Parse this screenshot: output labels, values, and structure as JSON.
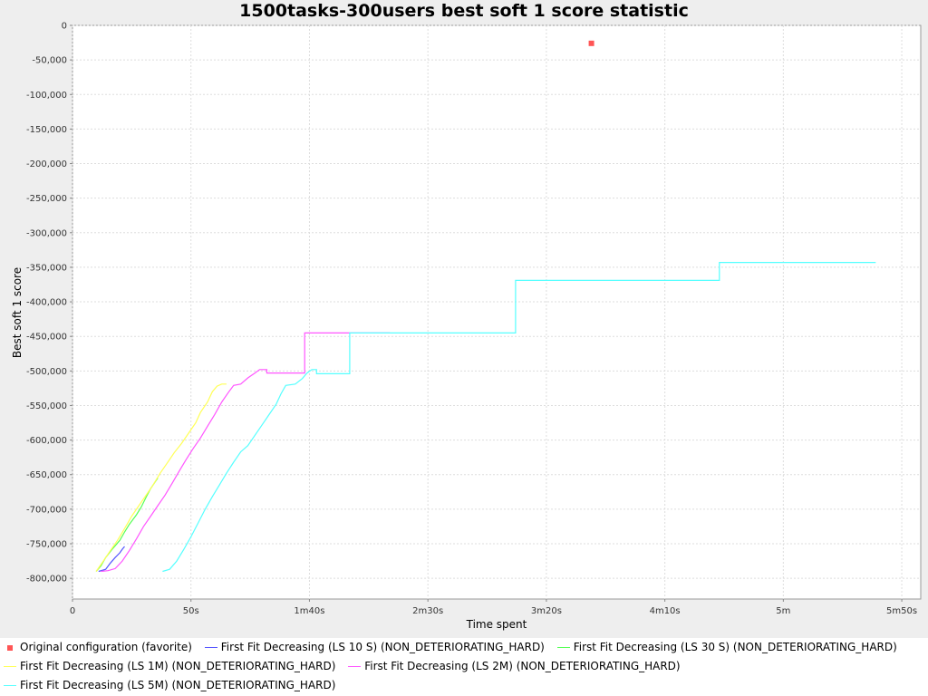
{
  "chart_data": {
    "type": "line",
    "title": "1500tasks-300users best soft 1 score statistic",
    "xlabel": "Time spent",
    "ylabel": "Best soft 1 score",
    "xlim": [
      0,
      358
    ],
    "ylim": [
      -830000,
      0
    ],
    "grid": true,
    "legend_position": "bottom",
    "x_ticks": [
      {
        "value": 0,
        "label": "0"
      },
      {
        "value": 50,
        "label": "50s"
      },
      {
        "value": 100,
        "label": "1m40s"
      },
      {
        "value": 150,
        "label": "2m30s"
      },
      {
        "value": 200,
        "label": "3m20s"
      },
      {
        "value": 250,
        "label": "4m10s"
      },
      {
        "value": 300,
        "label": "5m"
      },
      {
        "value": 350,
        "label": "5m50s"
      }
    ],
    "y_ticks": [
      {
        "value": 0,
        "label": "0"
      },
      {
        "value": -50000,
        "label": "-50,000"
      },
      {
        "value": -100000,
        "label": "-100,000"
      },
      {
        "value": -150000,
        "label": "-150,000"
      },
      {
        "value": -200000,
        "label": "-200,000"
      },
      {
        "value": -250000,
        "label": "-250,000"
      },
      {
        "value": -300000,
        "label": "-300,000"
      },
      {
        "value": -350000,
        "label": "-350,000"
      },
      {
        "value": -400000,
        "label": "-400,000"
      },
      {
        "value": -450000,
        "label": "-450,000"
      },
      {
        "value": -500000,
        "label": "-500,000"
      },
      {
        "value": -550000,
        "label": "-550,000"
      },
      {
        "value": -600000,
        "label": "-600,000"
      },
      {
        "value": -650000,
        "label": "-650,000"
      },
      {
        "value": -700000,
        "label": "-700,000"
      },
      {
        "value": -750000,
        "label": "-750,000"
      },
      {
        "value": -800000,
        "label": "-800,000"
      }
    ],
    "series": [
      {
        "name": "Original configuration (favorite)",
        "color": "#ff5555",
        "marker": "square",
        "points": [
          [
            219,
            -26000
          ]
        ]
      },
      {
        "name": "First Fit Decreasing (LS 10 S) (NON_DETERIORATING_HARD)",
        "color": "#5555ff",
        "points": [
          [
            11,
            -790000
          ],
          [
            14,
            -787000
          ],
          [
            16,
            -778000
          ],
          [
            18,
            -770000
          ],
          [
            20,
            -763000
          ],
          [
            21,
            -758000
          ],
          [
            22,
            -754000
          ]
        ]
      },
      {
        "name": "First Fit Decreasing (LS 30 S) (NON_DETERIORATING_HARD)",
        "color": "#55ff55",
        "points": [
          [
            10,
            -790000
          ],
          [
            12,
            -782000
          ],
          [
            14,
            -770000
          ],
          [
            17,
            -757000
          ],
          [
            20,
            -745000
          ],
          [
            22,
            -733000
          ],
          [
            24,
            -722000
          ],
          [
            27,
            -708000
          ],
          [
            29,
            -697000
          ],
          [
            31,
            -683000
          ],
          [
            33,
            -670000
          ],
          [
            35,
            -660000
          ],
          [
            36,
            -655000
          ]
        ]
      },
      {
        "name": "First Fit Decreasing (LS 1M) (NON_DETERIORATING_HARD)",
        "color": "#ffff55",
        "points": [
          [
            10,
            -790000
          ],
          [
            13,
            -775000
          ],
          [
            16,
            -760000
          ],
          [
            19,
            -745000
          ],
          [
            22,
            -728000
          ],
          [
            25,
            -710000
          ],
          [
            28,
            -695000
          ],
          [
            31,
            -680000
          ],
          [
            34,
            -665000
          ],
          [
            37,
            -648000
          ],
          [
            40,
            -633000
          ],
          [
            43,
            -618000
          ],
          [
            46,
            -605000
          ],
          [
            49,
            -590000
          ],
          [
            52,
            -575000
          ],
          [
            54,
            -560000
          ],
          [
            57,
            -545000
          ],
          [
            59,
            -530000
          ],
          [
            61,
            -522000
          ],
          [
            63,
            -519000
          ],
          [
            65,
            -519000
          ]
        ]
      },
      {
        "name": "First Fit Decreasing (LS 2M) (NON_DETERIORATING_HARD)",
        "color": "#ff55ff",
        "points": [
          [
            12,
            -790000
          ],
          [
            15,
            -789000
          ],
          [
            18,
            -786000
          ],
          [
            21,
            -775000
          ],
          [
            24,
            -760000
          ],
          [
            27,
            -743000
          ],
          [
            30,
            -725000
          ],
          [
            33,
            -710000
          ],
          [
            36,
            -695000
          ],
          [
            39,
            -680000
          ],
          [
            42,
            -663000
          ],
          [
            45,
            -645000
          ],
          [
            48,
            -628000
          ],
          [
            51,
            -612000
          ],
          [
            54,
            -597000
          ],
          [
            57,
            -580000
          ],
          [
            60,
            -563000
          ],
          [
            63,
            -545000
          ],
          [
            66,
            -530000
          ],
          [
            68,
            -521000
          ],
          [
            71,
            -519000
          ],
          [
            74,
            -510000
          ],
          [
            77,
            -503000
          ],
          [
            79,
            -498000
          ],
          [
            82,
            -498000
          ],
          [
            82,
            -503000
          ],
          [
            98,
            -503000
          ],
          [
            98,
            -445000
          ],
          [
            134,
            -445000
          ]
        ]
      },
      {
        "name": "First Fit Decreasing (LS 5M) (NON_DETERIORATING_HARD)",
        "color": "#55ffff",
        "points": [
          [
            38,
            -790000
          ],
          [
            41,
            -787000
          ],
          [
            44,
            -775000
          ],
          [
            47,
            -758000
          ],
          [
            50,
            -740000
          ],
          [
            53,
            -720000
          ],
          [
            56,
            -700000
          ],
          [
            59,
            -682000
          ],
          [
            62,
            -665000
          ],
          [
            65,
            -648000
          ],
          [
            68,
            -632000
          ],
          [
            71,
            -617000
          ],
          [
            74,
            -608000
          ],
          [
            77,
            -593000
          ],
          [
            80,
            -578000
          ],
          [
            83,
            -563000
          ],
          [
            86,
            -548000
          ],
          [
            88,
            -533000
          ],
          [
            90,
            -521000
          ],
          [
            94,
            -519000
          ],
          [
            97,
            -511000
          ],
          [
            99,
            -503000
          ],
          [
            101,
            -498000
          ],
          [
            103,
            -498000
          ],
          [
            103,
            -504000
          ],
          [
            117,
            -504000
          ],
          [
            117,
            -445000
          ],
          [
            187,
            -445000
          ],
          [
            187,
            -369000
          ],
          [
            273,
            -369000
          ],
          [
            273,
            -343000
          ],
          [
            339,
            -343000
          ]
        ]
      }
    ]
  }
}
